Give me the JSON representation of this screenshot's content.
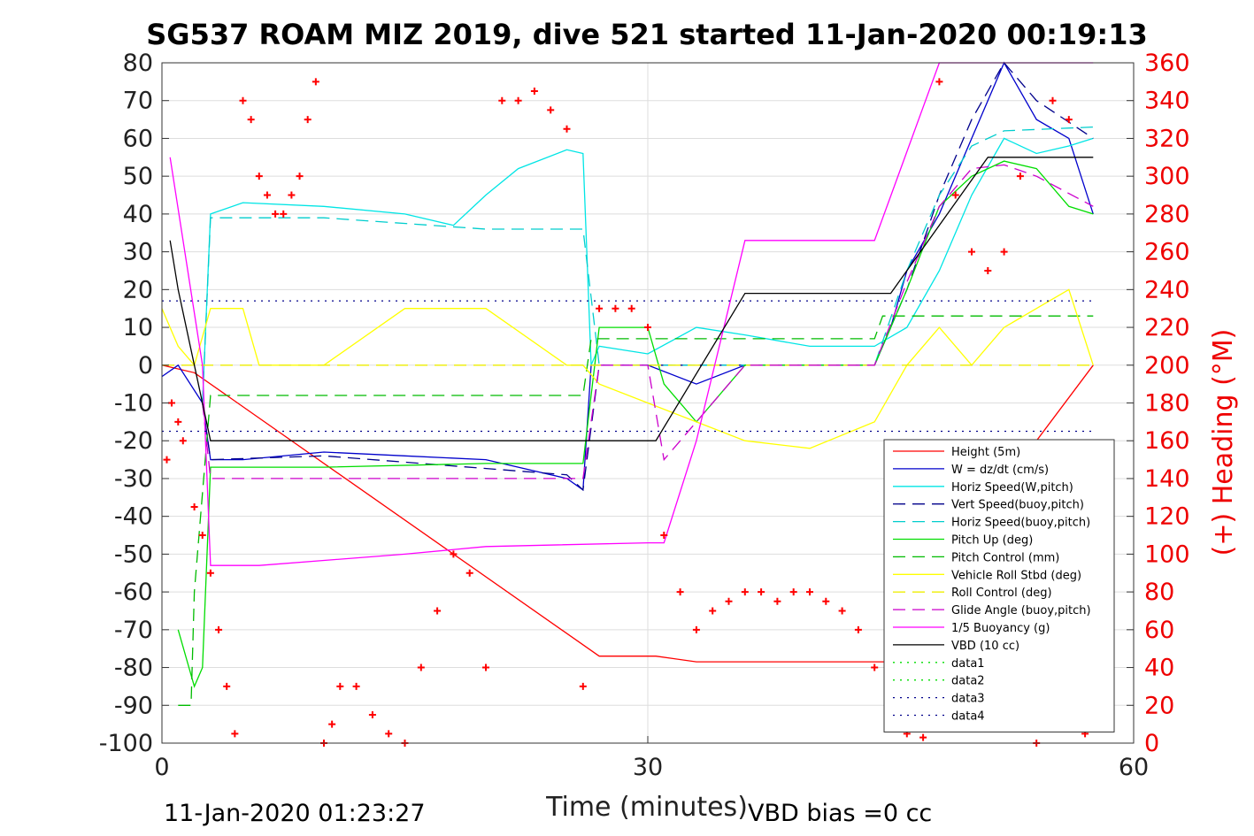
{
  "chart_data": {
    "type": "line",
    "title": "SG537 ROAM MIZ 2019, dive 521 started 11-Jan-2020 00:19:13",
    "xlabel": "Time (minutes)",
    "ylabel_right": "(+) Heading (°M)",
    "xlim": [
      0,
      60
    ],
    "ylim": [
      -100,
      80
    ],
    "ylim_right": [
      0,
      360
    ],
    "x_ticks": [
      "0",
      "30",
      "60"
    ],
    "y_ticks": [
      "80",
      "70",
      "60",
      "50",
      "40",
      "30",
      "20",
      "10",
      "0",
      "-10",
      "-20",
      "-30",
      "-40",
      "-50",
      "-60",
      "-70",
      "-80",
      "-90",
      "-100"
    ],
    "y_ticks_right": [
      "360",
      "340",
      "320",
      "300",
      "280",
      "260",
      "240",
      "220",
      "200",
      "180",
      "160",
      "140",
      "120",
      "100",
      "80",
      "60",
      "40",
      "20",
      "0"
    ],
    "grid": true,
    "legend_position": "bottom-right",
    "footer_left": "11-Jan-2020 01:23:27",
    "footer_right": "VBD bias =0 cc",
    "series": [
      {
        "name": "Height (5m)",
        "color": "#ff0000",
        "style": "solid",
        "x": [
          0,
          2,
          27,
          30.5,
          33,
          44,
          48,
          54,
          57.5
        ],
        "y": [
          0,
          -2,
          -77,
          -77,
          -78.5,
          -78.5,
          -78.5,
          -20,
          0
        ]
      },
      {
        "name": "W = dz/dt (cm/s)",
        "color": "#0000cc",
        "style": "solid",
        "x": [
          0,
          1,
          2.5,
          3,
          5,
          10,
          15,
          20,
          25,
          26,
          26.5,
          27,
          30,
          33,
          36,
          40,
          44,
          45,
          46,
          48,
          50,
          52,
          54,
          56,
          57.5
        ],
        "y": [
          -3,
          0,
          -10,
          -25,
          -25,
          -23,
          -24,
          -25,
          -30,
          -33,
          0,
          0,
          0,
          -5,
          0,
          0,
          0,
          10,
          25,
          40,
          60,
          80,
          65,
          60,
          40
        ]
      },
      {
        "name": "Horiz Speed(W,pitch)",
        "color": "#00e5e5",
        "style": "solid",
        "x": [
          2.5,
          3,
          5,
          10,
          15,
          18,
          20,
          22,
          25,
          26,
          26.5,
          27,
          30,
          33,
          36,
          40,
          44,
          46,
          48,
          50,
          52,
          54,
          56,
          57.5
        ],
        "y": [
          -10,
          40,
          43,
          42,
          40,
          37,
          45,
          52,
          57,
          56,
          0,
          5,
          3,
          10,
          8,
          5,
          5,
          10,
          25,
          45,
          60,
          56,
          58,
          60
        ]
      },
      {
        "name": "Vert Speed(buoy,pitch)",
        "color": "#00008b",
        "style": "dashed",
        "x": [
          2.5,
          3,
          10,
          25,
          26,
          27,
          44,
          46,
          48,
          50,
          52,
          54,
          57.5
        ],
        "y": [
          -10,
          -25,
          -24,
          -29,
          -33,
          0,
          0,
          20,
          45,
          65,
          80,
          70,
          60
        ]
      },
      {
        "name": "Horiz Speed(buoy,pitch)",
        "color": "#00cdcd",
        "style": "dashed",
        "x": [
          2.5,
          3,
          10,
          20,
          26,
          27,
          44,
          46,
          48,
          50,
          52,
          57.5
        ],
        "y": [
          -10,
          39,
          39,
          36,
          36,
          0,
          0,
          25,
          45,
          58,
          62,
          63
        ]
      },
      {
        "name": "Pitch Up (deg)",
        "color": "#00dd00",
        "style": "solid",
        "x": [
          1,
          2,
          2.5,
          3,
          10,
          20,
          26,
          27,
          30,
          31,
          33,
          36,
          40,
          44,
          46,
          48,
          50,
          52,
          54,
          56,
          57.5
        ],
        "y": [
          -70,
          -85,
          -80,
          -27,
          -27,
          -26,
          -26,
          10,
          10,
          -5,
          -15,
          0,
          0,
          0,
          20,
          42,
          50,
          54,
          52,
          42,
          40
        ]
      },
      {
        "name": "Pitch Control (mm)",
        "color": "#00bb00",
        "style": "dashed",
        "x": [
          1,
          1.8,
          2,
          3,
          26,
          26.5,
          27,
          36,
          44,
          44.5,
          57.5
        ],
        "y": [
          -90,
          -90,
          -60,
          -8,
          -8,
          7,
          7,
          7,
          7,
          13,
          13
        ]
      },
      {
        "name": "Vehicle Roll Stbd (deg)",
        "color": "#ffff00",
        "style": "solid",
        "x": [
          0,
          1,
          2,
          3,
          5,
          6,
          10,
          15,
          20,
          25,
          26,
          27,
          30,
          33,
          36,
          40,
          44,
          46,
          48,
          50,
          52,
          54,
          56,
          57.5
        ],
        "y": [
          15,
          5,
          0,
          15,
          15,
          0,
          0,
          15,
          15,
          0,
          0,
          -5,
          -10,
          -15,
          -20,
          -22,
          -15,
          0,
          10,
          0,
          10,
          15,
          20,
          0
        ]
      },
      {
        "name": "Roll Control (deg)",
        "color": "#eeee00",
        "style": "dashed",
        "x": [
          0,
          57.5
        ],
        "y": [
          0,
          0
        ]
      },
      {
        "name": "Glide Angle (buoy,pitch)",
        "color": "#cc00cc",
        "style": "dashed",
        "x": [
          2.5,
          3,
          10,
          26,
          27,
          30,
          31,
          33,
          36,
          44,
          46,
          48,
          50,
          52,
          54,
          57.5
        ],
        "y": [
          -10,
          -30,
          -30,
          -30,
          0,
          0,
          -25,
          -15,
          0,
          0,
          22,
          42,
          52,
          53,
          50,
          42
        ]
      },
      {
        "name": "1/5 Buoyancy (g)",
        "color": "#ff00ff",
        "style": "solid",
        "x": [
          0.5,
          2.5,
          3,
          6,
          15,
          20,
          30,
          31,
          33,
          36,
          44,
          48,
          57.5
        ],
        "y": [
          55,
          0,
          -53,
          -53,
          -50,
          -48,
          -47,
          -47,
          -20,
          33,
          33,
          80,
          80
        ]
      },
      {
        "name": "VBD (10 cc)",
        "color": "#000000",
        "style": "solid",
        "x": [
          0.5,
          1,
          2,
          3,
          30.5,
          36,
          44,
          45,
          51,
          57.5
        ],
        "y": [
          33,
          20,
          0,
          -20,
          -20,
          19,
          19,
          19,
          55,
          55
        ]
      },
      {
        "name": "data1",
        "color": "#00dd00",
        "style": "dotted",
        "x": [],
        "y": []
      },
      {
        "name": "data2",
        "color": "#00dd00",
        "style": "dotted",
        "x": [],
        "y": []
      },
      {
        "name": "data3",
        "color": "#00008b",
        "style": "dotted",
        "x": [
          0,
          57.5
        ],
        "y": [
          17,
          17
        ]
      },
      {
        "name": "data4",
        "color": "#00008b",
        "style": "dotted",
        "x": [
          0,
          57.5
        ],
        "y": [
          -17.5,
          -17.5
        ]
      }
    ],
    "heading_points": {
      "name": "(+) Heading",
      "color": "#ff0000",
      "x": [
        0.3,
        0.6,
        1,
        1.3,
        2,
        2.5,
        3,
        3.5,
        4,
        4.5,
        5,
        5.5,
        6,
        6.5,
        7,
        7.5,
        8,
        8.5,
        9,
        9.5,
        10,
        10.5,
        11,
        12,
        13,
        14,
        15,
        16,
        17,
        18,
        19,
        20,
        21,
        22,
        23,
        24,
        25,
        26,
        27,
        28,
        29,
        30,
        31,
        32,
        33,
        34,
        35,
        36,
        37,
        38,
        39,
        40,
        41,
        42,
        43,
        44,
        45,
        46,
        47,
        48,
        49,
        50,
        51,
        52,
        53,
        54,
        55,
        56,
        57
      ],
      "y": [
        150,
        180,
        170,
        160,
        125,
        110,
        90,
        60,
        30,
        5,
        340,
        330,
        300,
        290,
        280,
        280,
        290,
        300,
        330,
        350,
        0,
        10,
        30,
        30,
        15,
        5,
        0,
        40,
        70,
        100,
        90,
        40,
        340,
        340,
        345,
        335,
        325,
        30,
        230,
        230,
        230,
        220,
        110,
        80,
        60,
        70,
        75,
        80,
        80,
        75,
        80,
        80,
        75,
        70,
        60,
        40,
        15,
        5,
        3,
        350,
        290,
        260,
        250,
        260,
        300,
        0,
        340,
        330,
        5
      ]
    }
  }
}
